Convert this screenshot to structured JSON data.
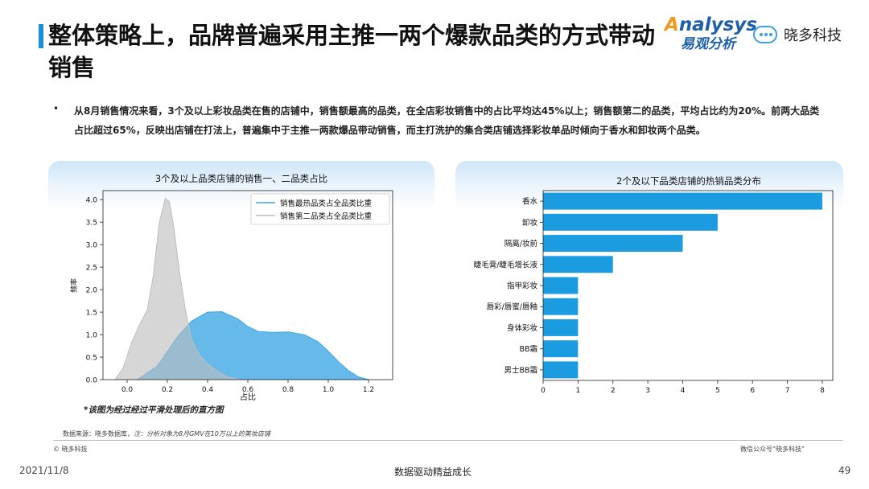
{
  "header": {
    "title": "整体策略上，品牌普遍采用主推一两个爆款品类的方式带动销售",
    "brand_en": "nalysys",
    "brand_en_initial": "A",
    "brand_cn": "易观分析",
    "brand2": "晓多科技"
  },
  "intro": {
    "bullet": "•",
    "text": "从8月销售情况来看，3个及以上彩妆品类在售的店铺中，销售额最高的品类，在全店彩妆销售中的占比平均达45%以上；销售额第二的品类，平均占比约为20%。前两大品类占比超过65%，反映出店铺在打法上，普遍集中于主推一两款爆品带动销售，而主打洗护的集合类店铺选择彩妆单品时倾向于香水和卸妆两个品类。"
  },
  "chart_data": [
    {
      "type": "area",
      "title": "3个及以上品类店铺的销售一、二品类占比",
      "xlabel": "占比",
      "ylabel": "频率",
      "xlim": [
        -0.12,
        1.32
      ],
      "ylim": [
        0,
        4.2
      ],
      "xticks": [
        "0.0",
        "0.2",
        "0.4",
        "0.6",
        "0.8",
        "1.0",
        "1.2"
      ],
      "yticks": [
        "0.0",
        "0.5",
        "1.0",
        "1.5",
        "2.0",
        "2.5",
        "3.0",
        "3.5",
        "4.0"
      ],
      "legend_position": "top-right",
      "grid": false,
      "series": [
        {
          "name": "销售最热品类占全品类比重",
          "color": "#3aa6e4",
          "x": [
            0.05,
            0.15,
            0.25,
            0.32,
            0.4,
            0.47,
            0.55,
            0.6,
            0.65,
            0.72,
            0.8,
            0.88,
            0.95,
            1.0,
            1.05,
            1.1,
            1.15,
            1.2
          ],
          "y": [
            0.0,
            0.3,
            0.95,
            1.3,
            1.5,
            1.51,
            1.35,
            1.18,
            1.07,
            1.05,
            1.06,
            1.0,
            0.84,
            0.63,
            0.4,
            0.2,
            0.06,
            0.0
          ]
        },
        {
          "name": "销售第二品类占全品类比重",
          "color": "#bdbdbd",
          "x": [
            -0.06,
            -0.02,
            0.02,
            0.06,
            0.1,
            0.13,
            0.16,
            0.19,
            0.21,
            0.23,
            0.26,
            0.29,
            0.32,
            0.36,
            0.4,
            0.45,
            0.5,
            0.56
          ],
          "y": [
            0.0,
            0.25,
            0.8,
            1.2,
            1.55,
            2.3,
            3.5,
            4.03,
            3.95,
            3.45,
            2.4,
            1.55,
            0.9,
            0.55,
            0.35,
            0.18,
            0.06,
            0.0
          ]
        }
      ]
    },
    {
      "type": "bar",
      "orientation": "horizontal",
      "title": "2个及以下品类店铺的热销品类分布",
      "categories": [
        "香水",
        "卸妆",
        "隔离/妆前",
        "睫毛膏/睫毛增长液",
        "指甲彩妆",
        "唇彩/唇蜜/唇釉",
        "身体彩妆",
        "BB霜",
        "男士BB霜"
      ],
      "values": [
        8,
        5,
        4,
        2,
        1,
        1,
        1,
        1,
        1
      ],
      "xlim": [
        0,
        8.3
      ],
      "xticks": [
        "0",
        "1",
        "2",
        "3",
        "4",
        "5",
        "6",
        "7",
        "8"
      ],
      "color": "#1b9be0"
    }
  ],
  "chart_note": "*该图为经过经过平滑处理后的直方图",
  "footer": {
    "source_label": "数据来源：晓多数据库，",
    "source_note": "注：分析对象为8月GMV在10万以上的美妆店铺",
    "copyright": "© 晓多科技",
    "wechat": "微信公众号“晓多科技”",
    "date": "2021/11/8",
    "slogan": "数据驱动精益成长",
    "page": "49"
  }
}
